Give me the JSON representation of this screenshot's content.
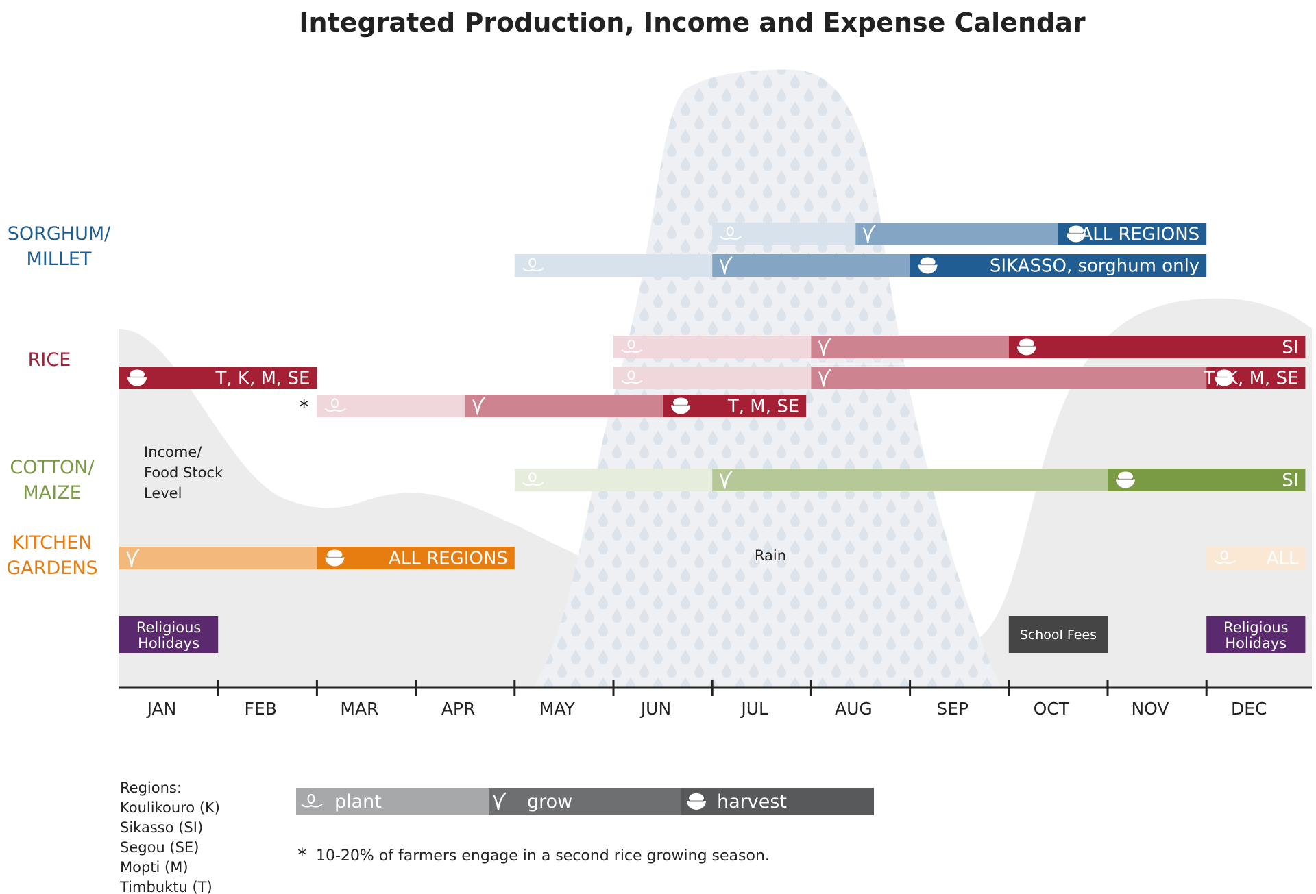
{
  "title": "Integrated Production, Income and Expense Calendar",
  "months": [
    "JAN",
    "FEB",
    "MAR",
    "APR",
    "MAY",
    "JUN",
    "JUL",
    "AUG",
    "SEP",
    "OCT",
    "NOV",
    "DEC"
  ],
  "colors": {
    "sorghum": "#1f5d93",
    "rice": "#a51f35",
    "cotton": "#7a9b43",
    "kitchen": "#e77d10",
    "holiday": "#5b2a6e",
    "fees": "#454546",
    "area": "#ececec",
    "rain": "#eef0f3"
  },
  "categories": [
    {
      "id": "sorghum",
      "lines": [
        "SORGHUM/",
        "MILLET"
      ],
      "color": "#1f5d93"
    },
    {
      "id": "rice",
      "lines": [
        "RICE"
      ],
      "color": "#a51f35"
    },
    {
      "id": "cotton",
      "lines": [
        "COTTON/",
        "MAIZE"
      ],
      "color": "#7a9b43"
    },
    {
      "id": "kitchen",
      "lines": [
        "KITCHEN",
        "GARDENS"
      ],
      "color": "#e77d10"
    }
  ],
  "chart_data": {
    "type": "gantt",
    "rows": [
      {
        "crop": "SORGHUM/MILLET",
        "label": "ALL REGIONS",
        "segments": [
          {
            "phase": "plant",
            "start": 6.0,
            "end": 7.45
          },
          {
            "phase": "grow",
            "start": 7.45,
            "end": 9.5
          },
          {
            "phase": "harvest",
            "start": 9.5,
            "end": 11.0
          }
        ]
      },
      {
        "crop": "SORGHUM/MILLET",
        "label": "SIKASSO, sorghum only",
        "segments": [
          {
            "phase": "plant",
            "start": 4.0,
            "end": 6.0
          },
          {
            "phase": "grow",
            "start": 6.0,
            "end": 8.0
          },
          {
            "phase": "harvest",
            "start": 8.0,
            "end": 11.0
          }
        ]
      },
      {
        "crop": "RICE",
        "label": "SI",
        "segments": [
          {
            "phase": "plant",
            "start": 5.0,
            "end": 7.0
          },
          {
            "phase": "grow",
            "start": 7.0,
            "end": 9.0
          },
          {
            "phase": "harvest",
            "start": 9.0,
            "end": 12.0
          }
        ]
      },
      {
        "crop": "RICE",
        "label": "T, K, M, SE",
        "segments": [
          {
            "phase": "harvest",
            "start": 0.0,
            "end": 2.0
          }
        ]
      },
      {
        "crop": "RICE",
        "label": "T, K, M, SE",
        "segments": [
          {
            "phase": "plant",
            "start": 5.0,
            "end": 7.0
          },
          {
            "phase": "grow",
            "start": 7.0,
            "end": 11.0
          },
          {
            "phase": "harvest",
            "start": 11.0,
            "end": 12.0
          }
        ]
      },
      {
        "crop": "RICE",
        "label": "T, M, SE",
        "note_marker": "*",
        "segments": [
          {
            "phase": "plant",
            "start": 2.0,
            "end": 3.5
          },
          {
            "phase": "grow",
            "start": 3.5,
            "end": 5.5
          },
          {
            "phase": "harvest",
            "start": 5.5,
            "end": 6.95
          }
        ]
      },
      {
        "crop": "COTTON/MAIZE",
        "label": "SI",
        "segments": [
          {
            "phase": "plant",
            "start": 4.0,
            "end": 6.0
          },
          {
            "phase": "grow",
            "start": 6.0,
            "end": 10.0
          },
          {
            "phase": "harvest",
            "start": 10.0,
            "end": 12.0
          }
        ]
      },
      {
        "crop": "KITCHEN GARDENS",
        "label": "ALL REGIONS",
        "segments": [
          {
            "phase": "grow",
            "start": 0.0,
            "end": 2.0
          },
          {
            "phase": "harvest",
            "start": 2.0,
            "end": 4.0
          }
        ]
      },
      {
        "crop": "KITCHEN GARDENS",
        "label": "ALL",
        "segments": [
          {
            "phase": "plant",
            "start": 11.0,
            "end": 12.0
          }
        ]
      }
    ],
    "expenses": [
      {
        "label_lines": [
          "Religious",
          "Holidays"
        ],
        "start": 0.0,
        "end": 1.0,
        "color": "#5b2a6e"
      },
      {
        "label_lines": [
          "School Fees"
        ],
        "start": 9.0,
        "end": 10.0,
        "color": "#454546"
      },
      {
        "label_lines": [
          "Religious",
          "Holidays"
        ],
        "start": 11.0,
        "end": 12.0,
        "color": "#5b2a6e"
      }
    ],
    "income_label_lines": [
      "Income/",
      "Food Stock",
      "Level"
    ],
    "rain_label": "Rain"
  },
  "legend": {
    "regions_title": "Regions:",
    "regions": [
      "Koulikouro (K)",
      "Sikasso (SI)",
      "Segou (SE)",
      "Mopti (M)",
      "Timbuktu (T)"
    ],
    "phases": [
      {
        "phase": "plant",
        "label": "plant",
        "icon": "plant-icon",
        "color": "#a7a8aa"
      },
      {
        "phase": "grow",
        "label": "grow",
        "icon": "sprout-icon",
        "color": "#6e6f71"
      },
      {
        "phase": "harvest",
        "label": "harvest",
        "icon": "bowl-icon",
        "color": "#58595b"
      }
    ],
    "footnote": "10-20% of farmers engage in a second rice growing season.",
    "footnote_marker": "*"
  }
}
